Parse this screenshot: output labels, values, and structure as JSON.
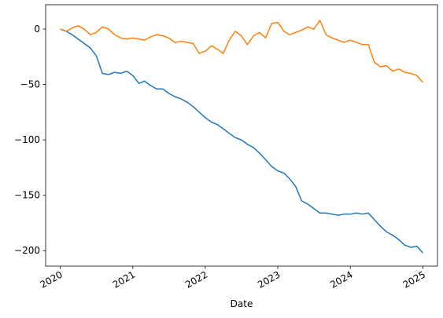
{
  "chart_data": {
    "type": "line",
    "title": "",
    "xlabel": "Date",
    "ylabel": "",
    "grid": false,
    "legend": "none",
    "x_axis": {
      "type": "date",
      "range": [
        "2019-10-20",
        "2025-03-15"
      ],
      "ticks": [
        {
          "date": "2020-01-01",
          "label": "2020"
        },
        {
          "date": "2021-01-01",
          "label": "2021"
        },
        {
          "date": "2022-01-01",
          "label": "2022"
        },
        {
          "date": "2023-01-01",
          "label": "2023"
        },
        {
          "date": "2024-01-01",
          "label": "2024"
        },
        {
          "date": "2025-01-01",
          "label": "2025"
        }
      ]
    },
    "y_axis": {
      "range": [
        -214,
        22
      ],
      "ticks": [
        0,
        -50,
        -100,
        -150,
        -200
      ],
      "tick_labels": [
        "0",
        "−50",
        "−100",
        "−150",
        "−200"
      ]
    },
    "series": [
      {
        "color": "#1f77b4",
        "points": [
          [
            "2020-01-02",
            0
          ],
          [
            "2020-02-01",
            -2
          ],
          [
            "2020-03-01",
            -5
          ],
          [
            "2020-04-01",
            -9
          ],
          [
            "2020-05-01",
            -13
          ],
          [
            "2020-06-01",
            -17
          ],
          [
            "2020-07-01",
            -24
          ],
          [
            "2020-08-01",
            -40
          ],
          [
            "2020-09-01",
            -41
          ],
          [
            "2020-10-01",
            -39
          ],
          [
            "2020-11-01",
            -40
          ],
          [
            "2020-12-01",
            -38
          ],
          [
            "2021-01-01",
            -42
          ],
          [
            "2021-02-01",
            -49
          ],
          [
            "2021-03-01",
            -47
          ],
          [
            "2021-04-01",
            -51
          ],
          [
            "2021-05-01",
            -54
          ],
          [
            "2021-06-01",
            -54
          ],
          [
            "2021-07-01",
            -58
          ],
          [
            "2021-08-01",
            -61
          ],
          [
            "2021-09-01",
            -63
          ],
          [
            "2021-10-01",
            -66
          ],
          [
            "2021-11-01",
            -70
          ],
          [
            "2021-12-01",
            -75
          ],
          [
            "2022-01-01",
            -80
          ],
          [
            "2022-02-01",
            -84
          ],
          [
            "2022-03-01",
            -86
          ],
          [
            "2022-04-01",
            -90
          ],
          [
            "2022-05-01",
            -94
          ],
          [
            "2022-06-01",
            -98
          ],
          [
            "2022-07-01",
            -100
          ],
          [
            "2022-08-01",
            -104
          ],
          [
            "2022-09-01",
            -107
          ],
          [
            "2022-10-01",
            -112
          ],
          [
            "2022-11-01",
            -118
          ],
          [
            "2022-12-01",
            -124
          ],
          [
            "2023-01-01",
            -128
          ],
          [
            "2023-02-01",
            -130
          ],
          [
            "2023-03-01",
            -135
          ],
          [
            "2023-04-01",
            -142
          ],
          [
            "2023-05-01",
            -155
          ],
          [
            "2023-06-01",
            -158
          ],
          [
            "2023-07-01",
            -162
          ],
          [
            "2023-08-01",
            -166
          ],
          [
            "2023-09-01",
            -166
          ],
          [
            "2023-10-01",
            -167
          ],
          [
            "2023-11-01",
            -168
          ],
          [
            "2023-12-01",
            -167
          ],
          [
            "2024-01-01",
            -167
          ],
          [
            "2024-02-01",
            -166
          ],
          [
            "2024-03-01",
            -167
          ],
          [
            "2024-04-01",
            -166
          ],
          [
            "2024-05-01",
            -172
          ],
          [
            "2024-06-01",
            -178
          ],
          [
            "2024-07-01",
            -183
          ],
          [
            "2024-08-01",
            -186
          ],
          [
            "2024-09-01",
            -190
          ],
          [
            "2024-10-01",
            -195
          ],
          [
            "2024-11-01",
            -197
          ],
          [
            "2024-12-01",
            -196
          ],
          [
            "2024-12-31",
            -202
          ]
        ]
      },
      {
        "color": "#ff7f0e",
        "points": [
          [
            "2020-01-02",
            0
          ],
          [
            "2020-02-01",
            -2
          ],
          [
            "2020-03-01",
            1
          ],
          [
            "2020-04-01",
            3
          ],
          [
            "2020-05-01",
            0
          ],
          [
            "2020-06-01",
            -5
          ],
          [
            "2020-07-01",
            -3
          ],
          [
            "2020-08-01",
            2
          ],
          [
            "2020-09-01",
            0
          ],
          [
            "2020-10-01",
            -5
          ],
          [
            "2020-11-01",
            -8
          ],
          [
            "2020-12-01",
            -9
          ],
          [
            "2021-01-01",
            -8
          ],
          [
            "2021-02-01",
            -9
          ],
          [
            "2021-03-01",
            -10
          ],
          [
            "2021-04-01",
            -7
          ],
          [
            "2021-05-01",
            -5
          ],
          [
            "2021-06-01",
            -6
          ],
          [
            "2021-07-01",
            -8
          ],
          [
            "2021-08-01",
            -12
          ],
          [
            "2021-09-01",
            -11
          ],
          [
            "2021-10-01",
            -12
          ],
          [
            "2021-11-01",
            -13
          ],
          [
            "2021-12-01",
            -22
          ],
          [
            "2022-01-01",
            -20
          ],
          [
            "2022-02-01",
            -15
          ],
          [
            "2022-03-01",
            -18
          ],
          [
            "2022-04-01",
            -22
          ],
          [
            "2022-05-01",
            -10
          ],
          [
            "2022-06-01",
            -2
          ],
          [
            "2022-07-01",
            -6
          ],
          [
            "2022-08-01",
            -14
          ],
          [
            "2022-09-01",
            -6
          ],
          [
            "2022-10-01",
            -3
          ],
          [
            "2022-11-01",
            -8
          ],
          [
            "2022-12-01",
            5
          ],
          [
            "2023-01-01",
            6
          ],
          [
            "2023-02-01",
            -2
          ],
          [
            "2023-03-01",
            -5
          ],
          [
            "2023-04-01",
            -3
          ],
          [
            "2023-05-01",
            -1
          ],
          [
            "2023-06-01",
            2
          ],
          [
            "2023-07-01",
            0
          ],
          [
            "2023-08-01",
            8
          ],
          [
            "2023-09-01",
            -5
          ],
          [
            "2023-10-01",
            -8
          ],
          [
            "2023-11-01",
            -10
          ],
          [
            "2023-12-01",
            -12
          ],
          [
            "2024-01-01",
            -10
          ],
          [
            "2024-02-01",
            -12
          ],
          [
            "2024-03-01",
            -14
          ],
          [
            "2024-04-01",
            -14
          ],
          [
            "2024-05-01",
            -30
          ],
          [
            "2024-06-01",
            -34
          ],
          [
            "2024-07-01",
            -33
          ],
          [
            "2024-08-01",
            -38
          ],
          [
            "2024-09-01",
            -36
          ],
          [
            "2024-10-01",
            -39
          ],
          [
            "2024-11-01",
            -40
          ],
          [
            "2024-12-01",
            -42
          ],
          [
            "2024-12-31",
            -48
          ]
        ]
      }
    ]
  }
}
